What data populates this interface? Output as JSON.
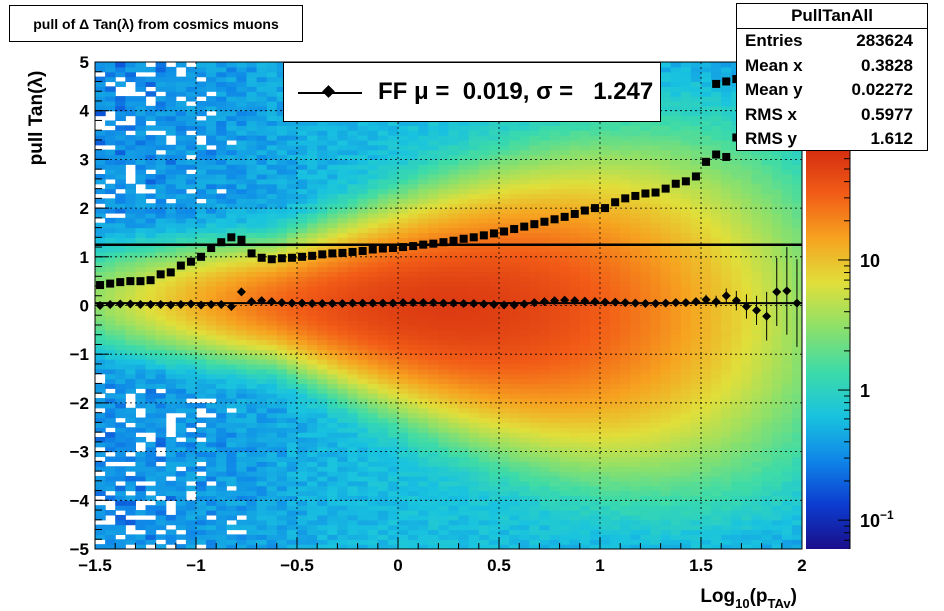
{
  "title": "pull of Δ Tan(λ) from cosmics muons",
  "stats": {
    "name": "PullTanAll",
    "rows": [
      {
        "label": "Entries",
        "value": "283624"
      },
      {
        "label": "Mean x",
        "value": "0.3828"
      },
      {
        "label": "Mean y",
        "value": "0.02272"
      },
      {
        "label": "RMS x",
        "value": "0.5977"
      },
      {
        "label": "RMS y",
        "value": "1.612"
      }
    ]
  },
  "legend": {
    "label": "FF μ =  0.019, σ =   1.247"
  },
  "colors": {
    "mean_marker": "#000000",
    "sigma_marker": "#000000",
    "palette": [
      "#1a0f8a",
      "#0c3cd0",
      "#0f86e8",
      "#19c3df",
      "#3ddba8",
      "#8de06a",
      "#e0df3a",
      "#f6a320",
      "#f25d17",
      "#d42e10"
    ]
  },
  "chart_data": {
    "type": "heatmap",
    "xlabel_main": "Log",
    "xlabel_sub": "10",
    "xlabel_mid": "(p",
    "xlabel_sub2": "TAv",
    "xlabel_end": ")",
    "ylabel": "pull Tan(λ)",
    "xlim": [
      -1.5,
      2.0
    ],
    "ylim": [
      -5,
      5
    ],
    "x_ticks": [
      {
        "v": -1.5,
        "label": "−1.5"
      },
      {
        "v": -1.0,
        "label": "−1"
      },
      {
        "v": -0.5,
        "label": "−0.5"
      },
      {
        "v": 0.0,
        "label": "0"
      },
      {
        "v": 0.5,
        "label": "0.5"
      },
      {
        "v": 1.0,
        "label": "1"
      },
      {
        "v": 1.5,
        "label": "1.5"
      },
      {
        "v": 2.0,
        "label": "2"
      }
    ],
    "y_ticks": [
      {
        "v": -5,
        "label": "−5"
      },
      {
        "v": -4,
        "label": "−4"
      },
      {
        "v": -3,
        "label": "−3"
      },
      {
        "v": -2,
        "label": "−2"
      },
      {
        "v": -1,
        "label": "−1"
      },
      {
        "v": 0,
        "label": "0"
      },
      {
        "v": 1,
        "label": "1"
      },
      {
        "v": 2,
        "label": "2"
      },
      {
        "v": 3,
        "label": "3"
      },
      {
        "v": 4,
        "label": "4"
      },
      {
        "v": 5,
        "label": "5"
      }
    ],
    "z_scale": "log",
    "zlim": [
      0.06,
      70
    ],
    "z_ticks": [
      {
        "v": 0.1,
        "label": "10",
        "sup": "−1"
      },
      {
        "v": 1,
        "label": "1",
        "sup": ""
      },
      {
        "v": 10,
        "label": "10",
        "sup": ""
      }
    ],
    "grid": true,
    "fit_line_y": 1.247,
    "mean_series": {
      "x": [
        -1.475,
        -1.425,
        -1.375,
        -1.325,
        -1.275,
        -1.225,
        -1.175,
        -1.125,
        -1.075,
        -1.025,
        -0.975,
        -0.925,
        -0.875,
        -0.825,
        -0.775,
        -0.725,
        -0.675,
        -0.625,
        -0.575,
        -0.525,
        -0.475,
        -0.425,
        -0.375,
        -0.325,
        -0.275,
        -0.225,
        -0.175,
        -0.125,
        -0.075,
        -0.025,
        0.025,
        0.075,
        0.125,
        0.175,
        0.225,
        0.275,
        0.325,
        0.375,
        0.425,
        0.475,
        0.525,
        0.575,
        0.625,
        0.675,
        0.725,
        0.775,
        0.825,
        0.875,
        0.925,
        0.975,
        1.025,
        1.075,
        1.125,
        1.175,
        1.225,
        1.275,
        1.325,
        1.375,
        1.425,
        1.475,
        1.525,
        1.575,
        1.625,
        1.675,
        1.725,
        1.775
      ],
      "y": [
        0.0,
        0.02,
        0.03,
        0.03,
        0.02,
        0.02,
        0.02,
        0.01,
        0.02,
        0.03,
        0.01,
        0.02,
        0.02,
        -0.02,
        0.28,
        0.08,
        0.1,
        0.08,
        0.06,
        0.05,
        0.05,
        0.04,
        0.04,
        0.04,
        0.04,
        0.05,
        0.05,
        0.05,
        0.05,
        0.05,
        0.06,
        0.06,
        0.06,
        0.06,
        0.05,
        0.05,
        0.04,
        0.04,
        0.03,
        0.02,
        0.01,
        0.01,
        0.03,
        0.06,
        0.08,
        0.1,
        0.11,
        0.1,
        0.09,
        0.08,
        0.07,
        0.07,
        0.06,
        0.05,
        0.04,
        0.04,
        0.05,
        0.06,
        0.06,
        0.08,
        0.12,
        0.08,
        0.2,
        0.1,
        -0.02,
        -0.1
      ],
      "err": [
        0.02,
        0.02,
        0.02,
        0.02,
        0.02,
        0.02,
        0.02,
        0.02,
        0.02,
        0.02,
        0.02,
        0.02,
        0.03,
        0.03,
        0.04,
        0.03,
        0.02,
        0.02,
        0.01,
        0.01,
        0.01,
        0.01,
        0.01,
        0.01,
        0.01,
        0.01,
        0.01,
        0.01,
        0.01,
        0.01,
        0.01,
        0.01,
        0.01,
        0.01,
        0.01,
        0.01,
        0.01,
        0.01,
        0.01,
        0.01,
        0.01,
        0.01,
        0.01,
        0.01,
        0.01,
        0.01,
        0.01,
        0.01,
        0.02,
        0.02,
        0.02,
        0.02,
        0.02,
        0.02,
        0.03,
        0.03,
        0.04,
        0.05,
        0.06,
        0.08,
        0.1,
        0.12,
        0.15,
        0.2,
        0.25,
        0.3
      ]
    },
    "mean_series_tail": {
      "x": [
        1.825,
        1.875,
        1.925,
        1.975
      ],
      "y": [
        -0.22,
        0.28,
        0.3,
        0.05
      ],
      "err": [
        0.5,
        0.7,
        0.9,
        0.9
      ]
    },
    "sigma_series": {
      "x": [
        -1.475,
        -1.425,
        -1.375,
        -1.325,
        -1.275,
        -1.225,
        -1.175,
        -1.125,
        -1.075,
        -1.025,
        -0.975,
        -0.925,
        -0.875,
        -0.825,
        -0.775,
        -0.725,
        -0.675,
        -0.625,
        -0.575,
        -0.525,
        -0.475,
        -0.425,
        -0.375,
        -0.325,
        -0.275,
        -0.225,
        -0.175,
        -0.125,
        -0.075,
        -0.025,
        0.025,
        0.075,
        0.125,
        0.175,
        0.225,
        0.275,
        0.325,
        0.375,
        0.425,
        0.475,
        0.525,
        0.575,
        0.625,
        0.675,
        0.725,
        0.775,
        0.825,
        0.875,
        0.925,
        0.975,
        1.025,
        1.075,
        1.125,
        1.175,
        1.225,
        1.275,
        1.325,
        1.375,
        1.425,
        1.475,
        1.525,
        1.575,
        1.625,
        1.675,
        1.725,
        1.775
      ],
      "y": [
        0.42,
        0.45,
        0.48,
        0.5,
        0.5,
        0.52,
        0.64,
        0.68,
        0.82,
        0.9,
        1.0,
        1.18,
        1.3,
        1.4,
        1.35,
        1.07,
        0.98,
        0.95,
        0.97,
        0.98,
        1.0,
        1.02,
        1.05,
        1.07,
        1.08,
        1.1,
        1.12,
        1.15,
        1.17,
        1.18,
        1.2,
        1.22,
        1.25,
        1.27,
        1.3,
        1.33,
        1.37,
        1.4,
        1.44,
        1.48,
        1.52,
        1.57,
        1.62,
        1.67,
        1.72,
        1.77,
        1.82,
        1.88,
        1.95,
        2.0,
        2.0,
        2.12,
        2.2,
        2.25,
        2.3,
        2.32,
        2.4,
        2.5,
        2.55,
        2.65,
        2.95,
        3.1,
        3.05,
        3.45,
        3.7,
        3.8
      ]
    },
    "sigma_series_tail": {
      "x": [
        1.575,
        1.625,
        1.675
      ],
      "y": [
        4.55,
        4.6,
        4.65
      ]
    }
  }
}
